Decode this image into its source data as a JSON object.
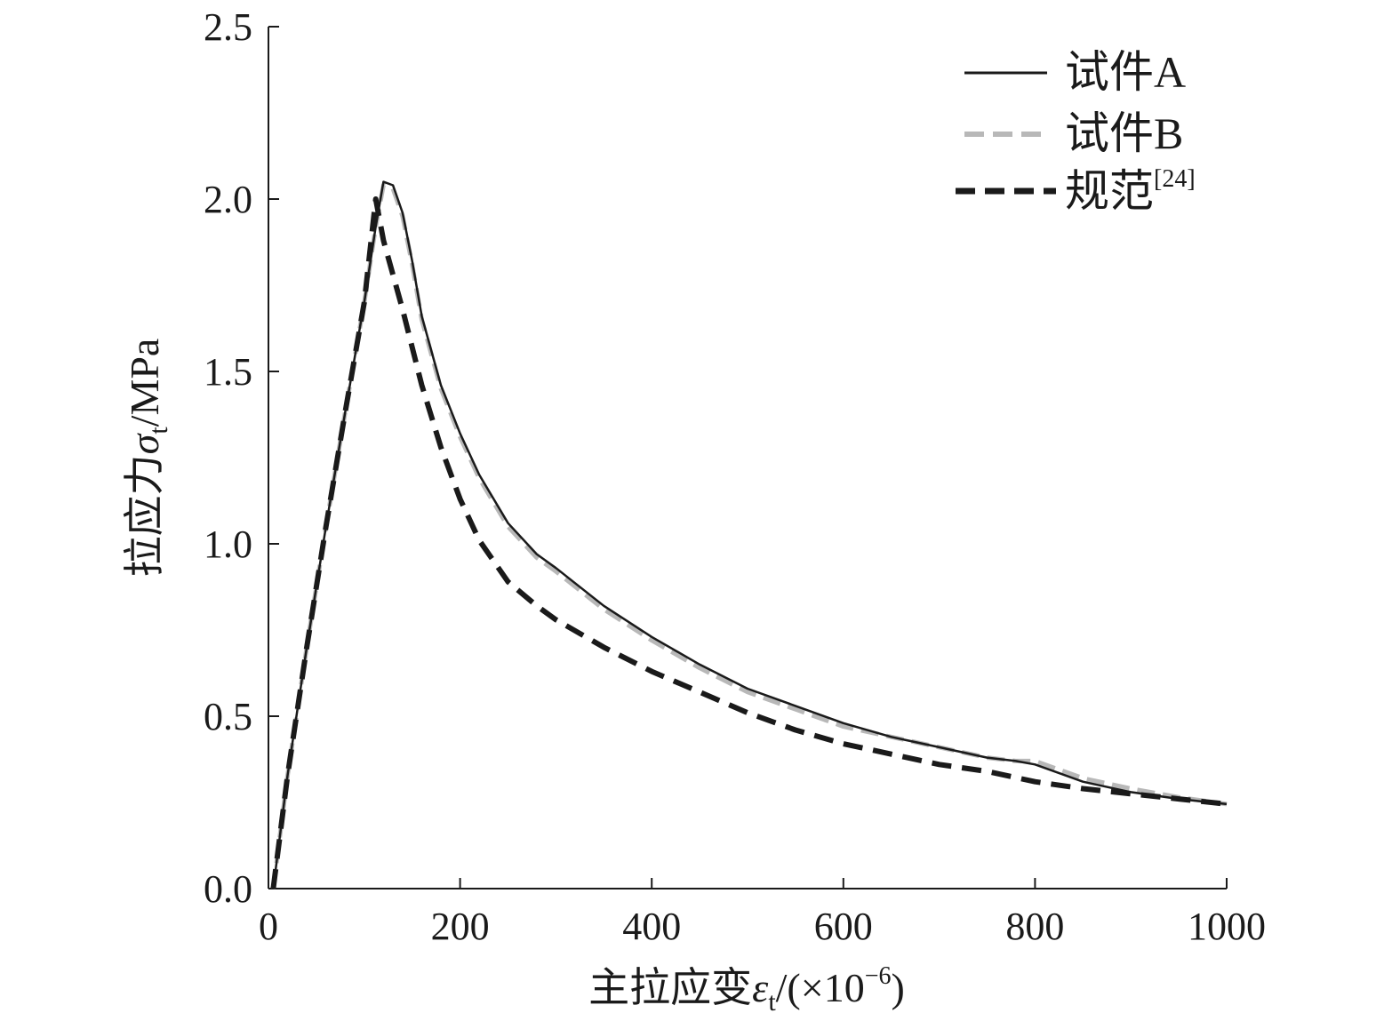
{
  "chart_data": {
    "type": "line",
    "xlabel_main": "主拉应变",
    "xlabel_symbol": "ε",
    "xlabel_sub": "t",
    "xlabel_unit_pre": "/(×10",
    "xlabel_unit_exp": "−6",
    "xlabel_unit_post": ")",
    "ylabel_main": "拉应力",
    "ylabel_symbol": "σ",
    "ylabel_sub": "t",
    "ylabel_unit": "/MPa",
    "xlim": [
      0,
      1000
    ],
    "ylim": [
      0,
      2.5
    ],
    "xticks": [
      "0",
      "200",
      "400",
      "600",
      "800",
      "1000"
    ],
    "yticks": [
      "0.0",
      "0.5",
      "1.0",
      "1.5",
      "2.0",
      "2.5"
    ],
    "legend_position": "top-right",
    "series": [
      {
        "name": "试件A",
        "color": "#1a1a1a",
        "style": "solid",
        "x": [
          5,
          20,
          40,
          60,
          80,
          100,
          112,
          120,
          130,
          140,
          150,
          160,
          180,
          200,
          220,
          250,
          280,
          300,
          350,
          400,
          450,
          500,
          550,
          600,
          650,
          700,
          750,
          780,
          800,
          820,
          850,
          900,
          950,
          1000
        ],
        "y": [
          0.0,
          0.33,
          0.7,
          1.05,
          1.38,
          1.7,
          1.92,
          2.05,
          2.04,
          1.96,
          1.82,
          1.66,
          1.46,
          1.32,
          1.2,
          1.06,
          0.97,
          0.93,
          0.82,
          0.73,
          0.65,
          0.58,
          0.53,
          0.48,
          0.44,
          0.41,
          0.38,
          0.37,
          0.36,
          0.34,
          0.31,
          0.28,
          0.26,
          0.245
        ]
      },
      {
        "name": "试件B",
        "color": "#b8b8b8",
        "style": "dashed",
        "x": [
          5,
          20,
          40,
          60,
          80,
          100,
          112,
          120,
          130,
          140,
          150,
          160,
          180,
          200,
          220,
          250,
          280,
          300,
          350,
          400,
          450,
          500,
          550,
          600,
          650,
          700,
          750,
          780,
          800,
          820,
          850,
          900,
          950,
          1000
        ],
        "y": [
          0.0,
          0.33,
          0.7,
          1.05,
          1.38,
          1.7,
          1.92,
          2.04,
          2.03,
          1.95,
          1.81,
          1.65,
          1.45,
          1.31,
          1.19,
          1.05,
          0.96,
          0.92,
          0.81,
          0.72,
          0.64,
          0.57,
          0.52,
          0.47,
          0.44,
          0.41,
          0.38,
          0.37,
          0.37,
          0.35,
          0.32,
          0.29,
          0.265,
          0.245
        ]
      },
      {
        "name": "规范",
        "name_sup": "[24]",
        "color": "#1a1a1a",
        "style": "dashed-bold",
        "x": [
          5,
          20,
          40,
          60,
          80,
          100,
          112,
          120,
          140,
          160,
          180,
          200,
          220,
          250,
          280,
          300,
          350,
          400,
          450,
          500,
          550,
          600,
          650,
          700,
          750,
          800,
          850,
          900,
          950,
          1000
        ],
        "y": [
          0.0,
          0.33,
          0.7,
          1.05,
          1.38,
          1.7,
          2.0,
          1.88,
          1.68,
          1.46,
          1.28,
          1.13,
          1.01,
          0.89,
          0.82,
          0.78,
          0.7,
          0.63,
          0.57,
          0.51,
          0.46,
          0.42,
          0.39,
          0.36,
          0.34,
          0.31,
          0.29,
          0.275,
          0.26,
          0.245
        ]
      }
    ]
  }
}
